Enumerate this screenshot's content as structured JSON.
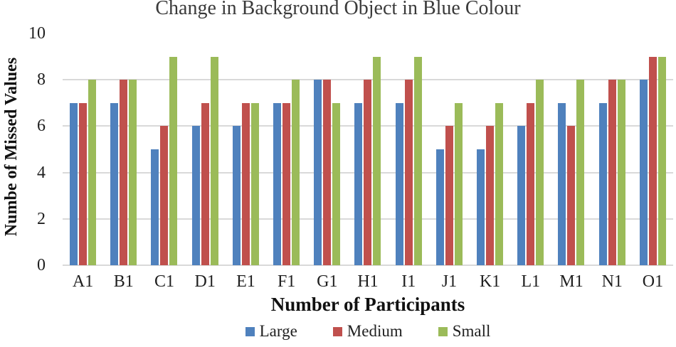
{
  "chart_data": {
    "type": "bar",
    "title": "Change in Background Object in Blue Colour",
    "xlabel": "Number of Participants",
    "ylabel": "Numbe of Missed Values",
    "categories": [
      "A1",
      "B1",
      "C1",
      "D1",
      "E1",
      "F1",
      "G1",
      "H1",
      "I1",
      "J1",
      "K1",
      "L1",
      "M1",
      "N1",
      "O1"
    ],
    "series": [
      {
        "name": "Large",
        "color": "#4F81BD",
        "values": [
          7,
          7,
          5,
          6,
          6,
          7,
          8,
          7,
          7,
          5,
          5,
          6,
          7,
          7,
          8
        ]
      },
      {
        "name": "Medium",
        "color": "#C0504D",
        "values": [
          7,
          8,
          6,
          7,
          7,
          7,
          8,
          8,
          8,
          6,
          6,
          7,
          6,
          8,
          9
        ]
      },
      {
        "name": "Small",
        "color": "#9BBB59",
        "values": [
          8,
          8,
          9,
          9,
          7,
          8,
          7,
          9,
          9,
          7,
          7,
          8,
          8,
          8,
          9
        ]
      }
    ],
    "ylim": [
      0,
      10
    ],
    "yticks": [
      0,
      2,
      4,
      6,
      8,
      10
    ],
    "grid_values": [
      0,
      2,
      4,
      6,
      8
    ],
    "grid": true,
    "gridline_color": "#D9D9D9",
    "legend_position": "bottom",
    "background_color": "#FFFFFF"
  }
}
